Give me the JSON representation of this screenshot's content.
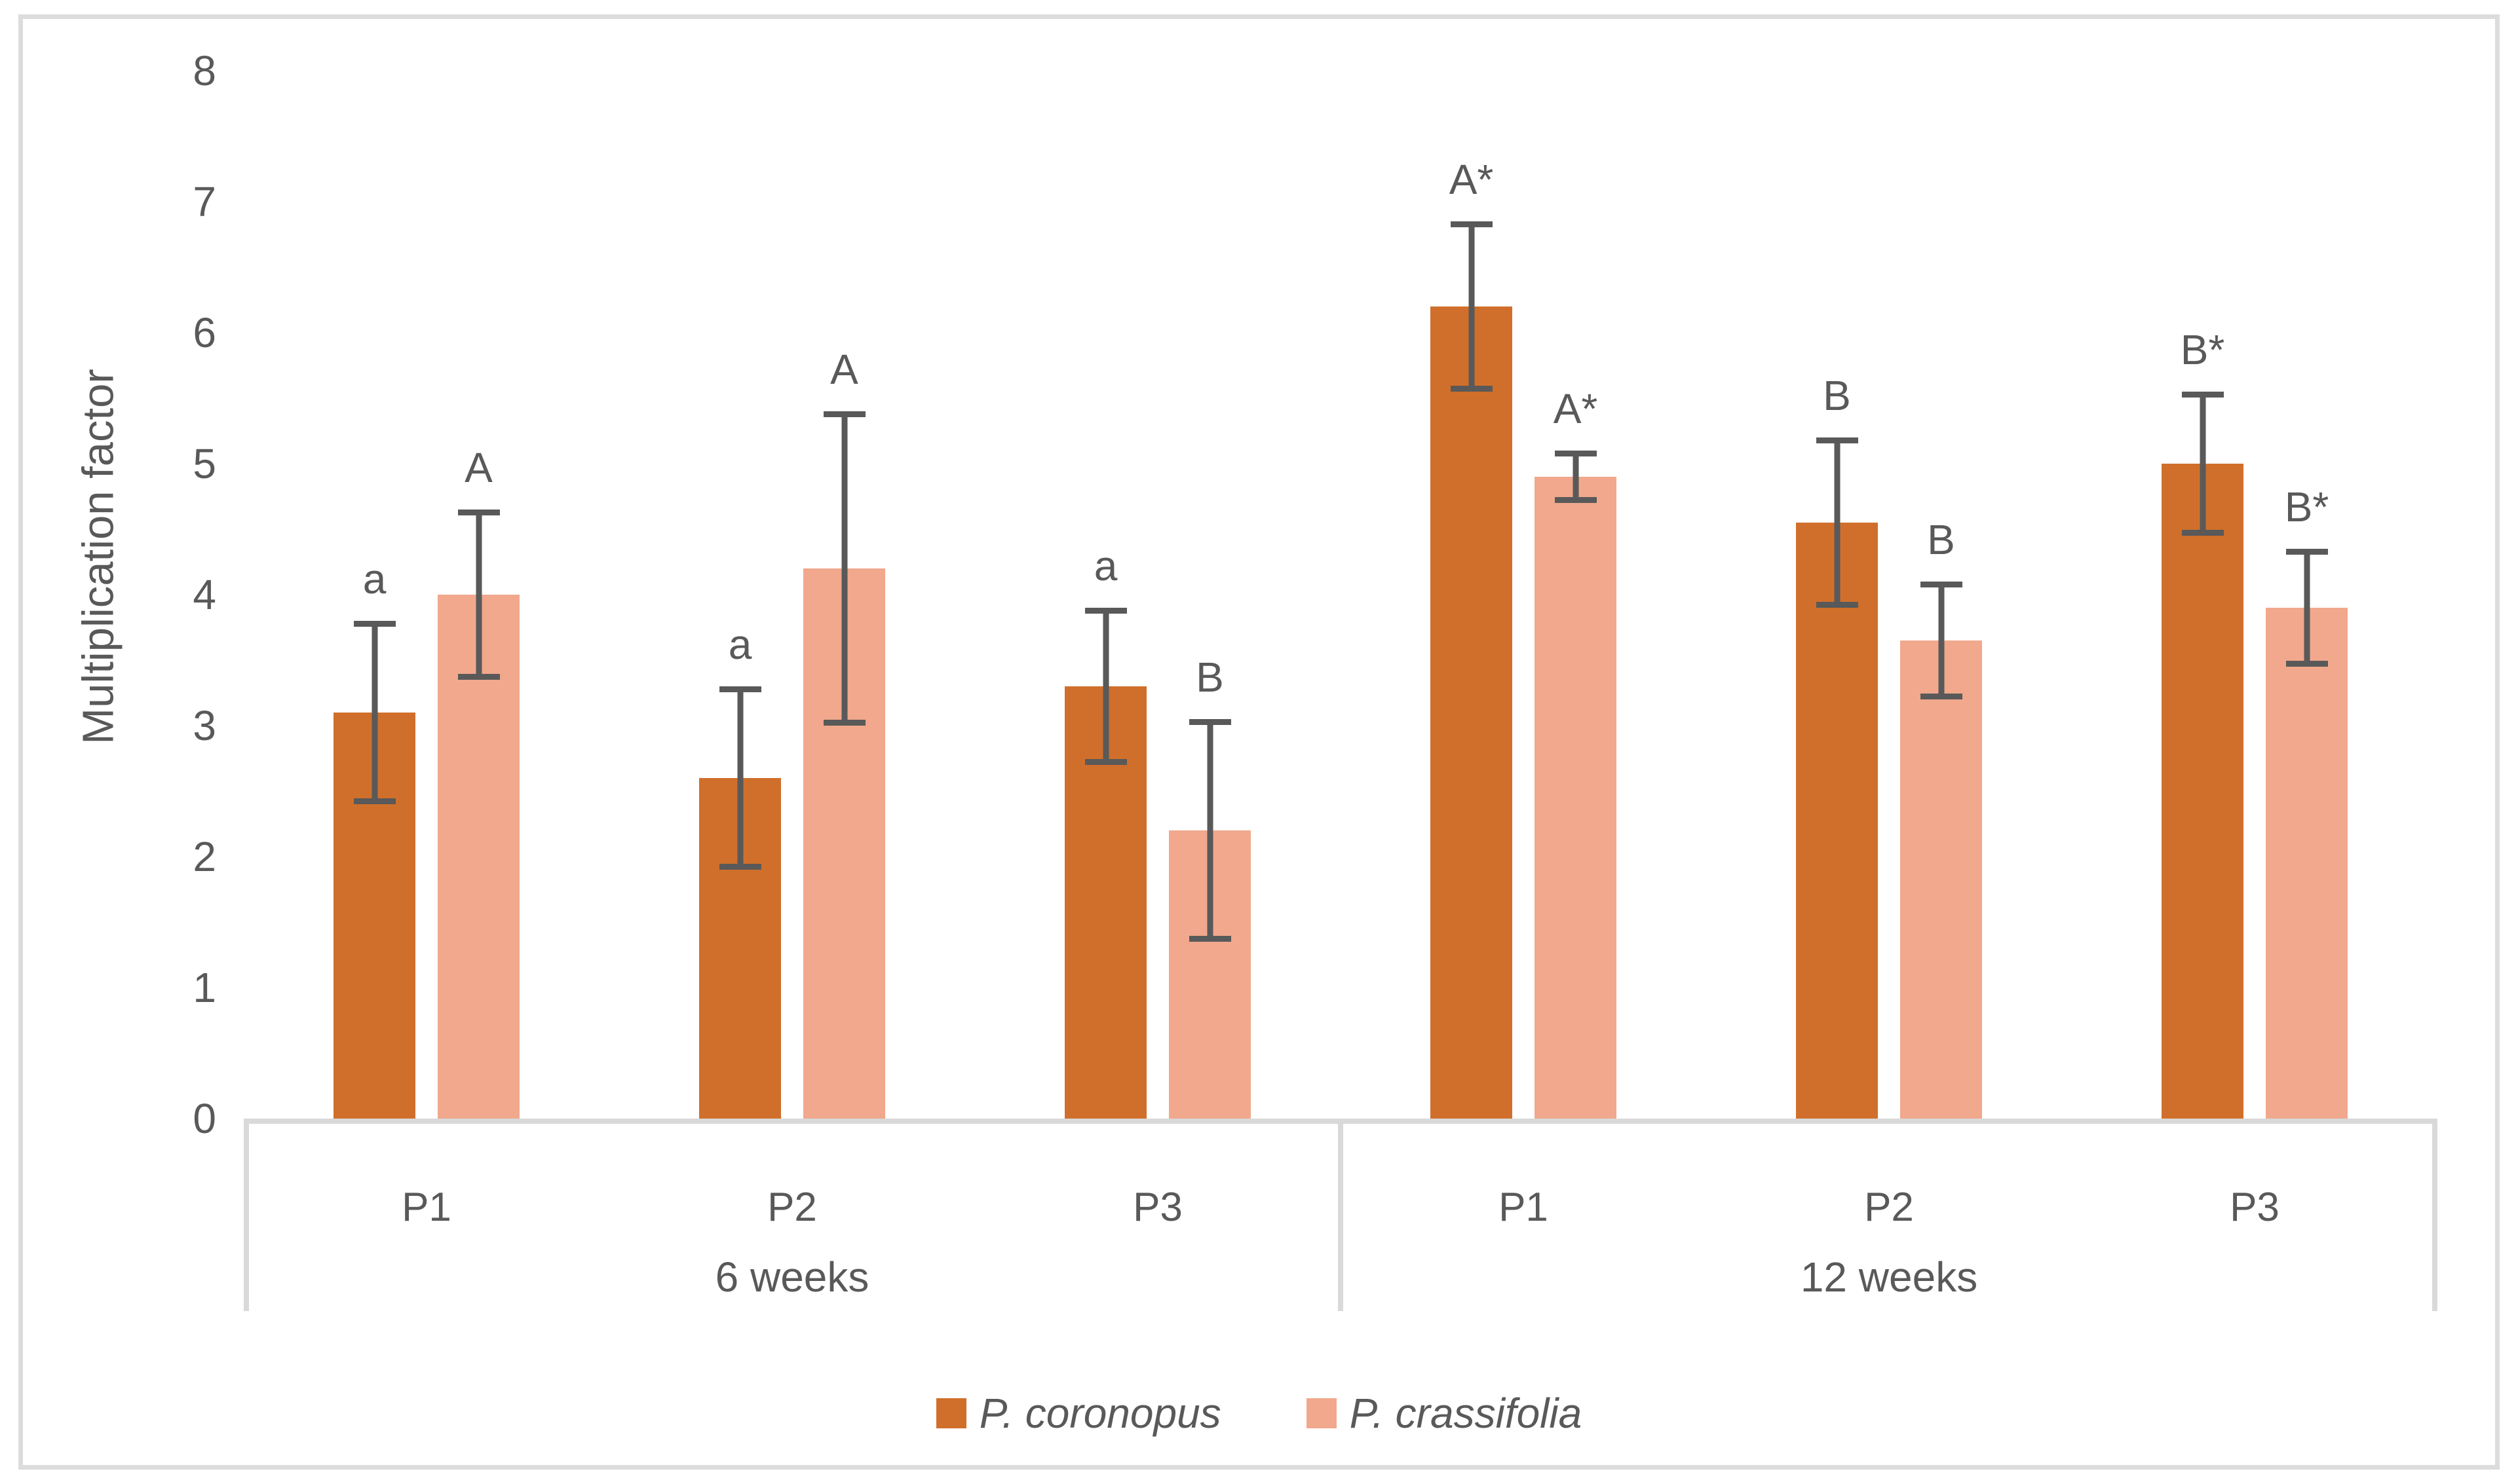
{
  "chart_data": {
    "type": "bar",
    "title": "",
    "ylabel": "Multiplication factor",
    "ylim": [
      0,
      8
    ],
    "yticks": [
      0,
      1,
      2,
      3,
      4,
      5,
      6,
      7,
      8
    ],
    "grid": false,
    "legend_position": "bottom-center",
    "groups": [
      {
        "label": "6 weeks",
        "categories": [
          "P1",
          "P2",
          "P3"
        ]
      },
      {
        "label": "12 weeks",
        "categories": [
          "P1",
          "P2",
          "P3"
        ]
      }
    ],
    "categories": [
      "P1",
      "P2",
      "P3",
      "P1",
      "P2",
      "P3"
    ],
    "series": [
      {
        "name": "P. coronopus",
        "color": "#D06F2B",
        "values": [
          3.1,
          2.6,
          3.3,
          6.2,
          4.55,
          5.0
        ],
        "errors": [
          0.7,
          0.7,
          0.6,
          0.65,
          0.65,
          0.55
        ],
        "letters": [
          "a",
          "a",
          "a",
          "A*",
          "B",
          "B*"
        ]
      },
      {
        "name": "P. crassifolia",
        "color": "#F1A88C",
        "values": [
          4.0,
          4.2,
          2.2,
          4.9,
          3.65,
          3.9
        ],
        "errors": [
          0.65,
          1.2,
          0.85,
          0.2,
          0.45,
          0.45
        ],
        "letters": [
          "A",
          "A",
          "B",
          "A*",
          "B",
          "B*"
        ]
      }
    ],
    "error_bar_color": "#595959",
    "axis_line_color": "#D9D9D9",
    "text_color": "#595959"
  }
}
